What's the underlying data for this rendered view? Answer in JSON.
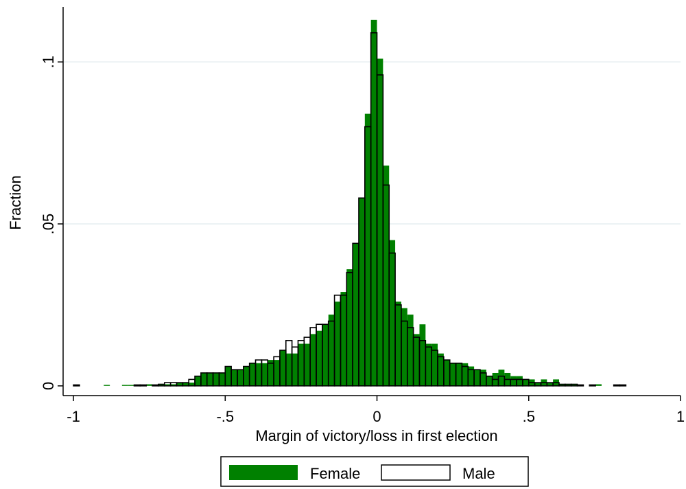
{
  "chart_data": {
    "type": "histogram",
    "xlabel": "Margin of victory/loss in first election",
    "ylabel": "Fraction",
    "bins": [
      -1,
      -0.98,
      -0.96,
      -0.94,
      -0.92,
      -0.9,
      -0.88,
      -0.86,
      -0.84,
      -0.82,
      -0.8,
      -0.78,
      -0.76,
      -0.74,
      -0.72,
      -0.7,
      -0.68,
      -0.66,
      -0.64,
      -0.62,
      -0.6,
      -0.58,
      -0.56,
      -0.54,
      -0.52,
      -0.5,
      -0.48,
      -0.46,
      -0.44,
      -0.42,
      -0.4,
      -0.38,
      -0.36,
      -0.34,
      -0.32,
      -0.3,
      -0.28,
      -0.26,
      -0.24,
      -0.22,
      -0.2,
      -0.18,
      -0.16,
      -0.14,
      -0.12,
      -0.1,
      -0.08,
      -0.06,
      -0.04,
      -0.02,
      0,
      0.02,
      0.04,
      0.06,
      0.08,
      0.1,
      0.12,
      0.14,
      0.16,
      0.18,
      0.2,
      0.22,
      0.24,
      0.26,
      0.28,
      0.3,
      0.32,
      0.34,
      0.36,
      0.38,
      0.4,
      0.42,
      0.44,
      0.46,
      0.48,
      0.5,
      0.52,
      0.54,
      0.56,
      0.58,
      0.6,
      0.62,
      0.64,
      0.66,
      0.68,
      0.7,
      0.72,
      0.74,
      0.76,
      0.78,
      0.8,
      0.82,
      0.84,
      0.86,
      0.88,
      0.9,
      0.92,
      0.94,
      0.96,
      0.98,
      1
    ],
    "series": [
      {
        "name": "Female",
        "color": "#008000",
        "fill": true,
        "values": [
          0,
          0,
          0,
          0,
          0,
          0.0003,
          0,
          0,
          0.0003,
          0.0003,
          0.0003,
          0.0003,
          0.0005,
          0.0003,
          0.0005,
          0.0005,
          0.0005,
          0.001,
          0.001,
          0.001,
          0.003,
          0.004,
          0.004,
          0.004,
          0.004,
          0.006,
          0.005,
          0.005,
          0.006,
          0.007,
          0.007,
          0.007,
          0.008,
          0.008,
          0.011,
          0.01,
          0.01,
          0.013,
          0.013,
          0.016,
          0.017,
          0.019,
          0.022,
          0.026,
          0.029,
          0.036,
          0.044,
          0.058,
          0.084,
          0.113,
          0.101,
          0.068,
          0.045,
          0.026,
          0.024,
          0.022,
          0.016,
          0.019,
          0.013,
          0.013,
          0.01,
          0.008,
          0.007,
          0.007,
          0.007,
          0.006,
          0.005,
          0.005,
          0.003,
          0.004,
          0.005,
          0.004,
          0.003,
          0.003,
          0.002,
          0.002,
          0.001,
          0.002,
          0.001,
          0.002,
          0.0005,
          0.0005,
          0.0005,
          0.0003,
          0,
          0,
          0.0005,
          0,
          0,
          0.0003,
          0.0003,
          0,
          0,
          0,
          0,
          0,
          0,
          0,
          0,
          0
        ]
      },
      {
        "name": "Male",
        "color": "#000000",
        "fill": false,
        "values": [
          0.0003,
          0,
          0,
          0,
          0,
          0,
          0,
          0,
          0,
          0,
          0.0003,
          0.0003,
          0,
          0.0003,
          0.0005,
          0.001,
          0.001,
          0.001,
          0.001,
          0.002,
          0.003,
          0.004,
          0.004,
          0.004,
          0.004,
          0.006,
          0.005,
          0.005,
          0.006,
          0.007,
          0.008,
          0.008,
          0.007,
          0.009,
          0.011,
          0.014,
          0.012,
          0.014,
          0.015,
          0.018,
          0.019,
          0.019,
          0.02,
          0.028,
          0.028,
          0.035,
          0.044,
          0.058,
          0.08,
          0.109,
          0.096,
          0.062,
          0.041,
          0.025,
          0.02,
          0.018,
          0.015,
          0.014,
          0.012,
          0.011,
          0.009,
          0.008,
          0.007,
          0.007,
          0.006,
          0.005,
          0.005,
          0.004,
          0.003,
          0.002,
          0.003,
          0.002,
          0.002,
          0.002,
          0.002,
          0.001,
          0.001,
          0.001,
          0.001,
          0.001,
          0.0005,
          0.0005,
          0.0005,
          0.0003,
          0,
          0.0003,
          0,
          0,
          0,
          0.0003,
          0.0003,
          0,
          0,
          0,
          0,
          0,
          0,
          0,
          0,
          0
        ]
      }
    ],
    "xlim": [
      -1.034,
      1
    ],
    "ylim": [
      -0.003,
      0.117
    ],
    "xticks": [
      -1,
      {
        "value": -0.5,
        "label": "-.5"
      },
      0,
      {
        "value": 0.5,
        "label": ".5"
      },
      1
    ],
    "yticks": [
      0,
      {
        "value": 0.05,
        "label": ".05"
      },
      {
        "value": 0.1,
        "label": ".1"
      }
    ],
    "grid": true,
    "legend": "bottom"
  }
}
